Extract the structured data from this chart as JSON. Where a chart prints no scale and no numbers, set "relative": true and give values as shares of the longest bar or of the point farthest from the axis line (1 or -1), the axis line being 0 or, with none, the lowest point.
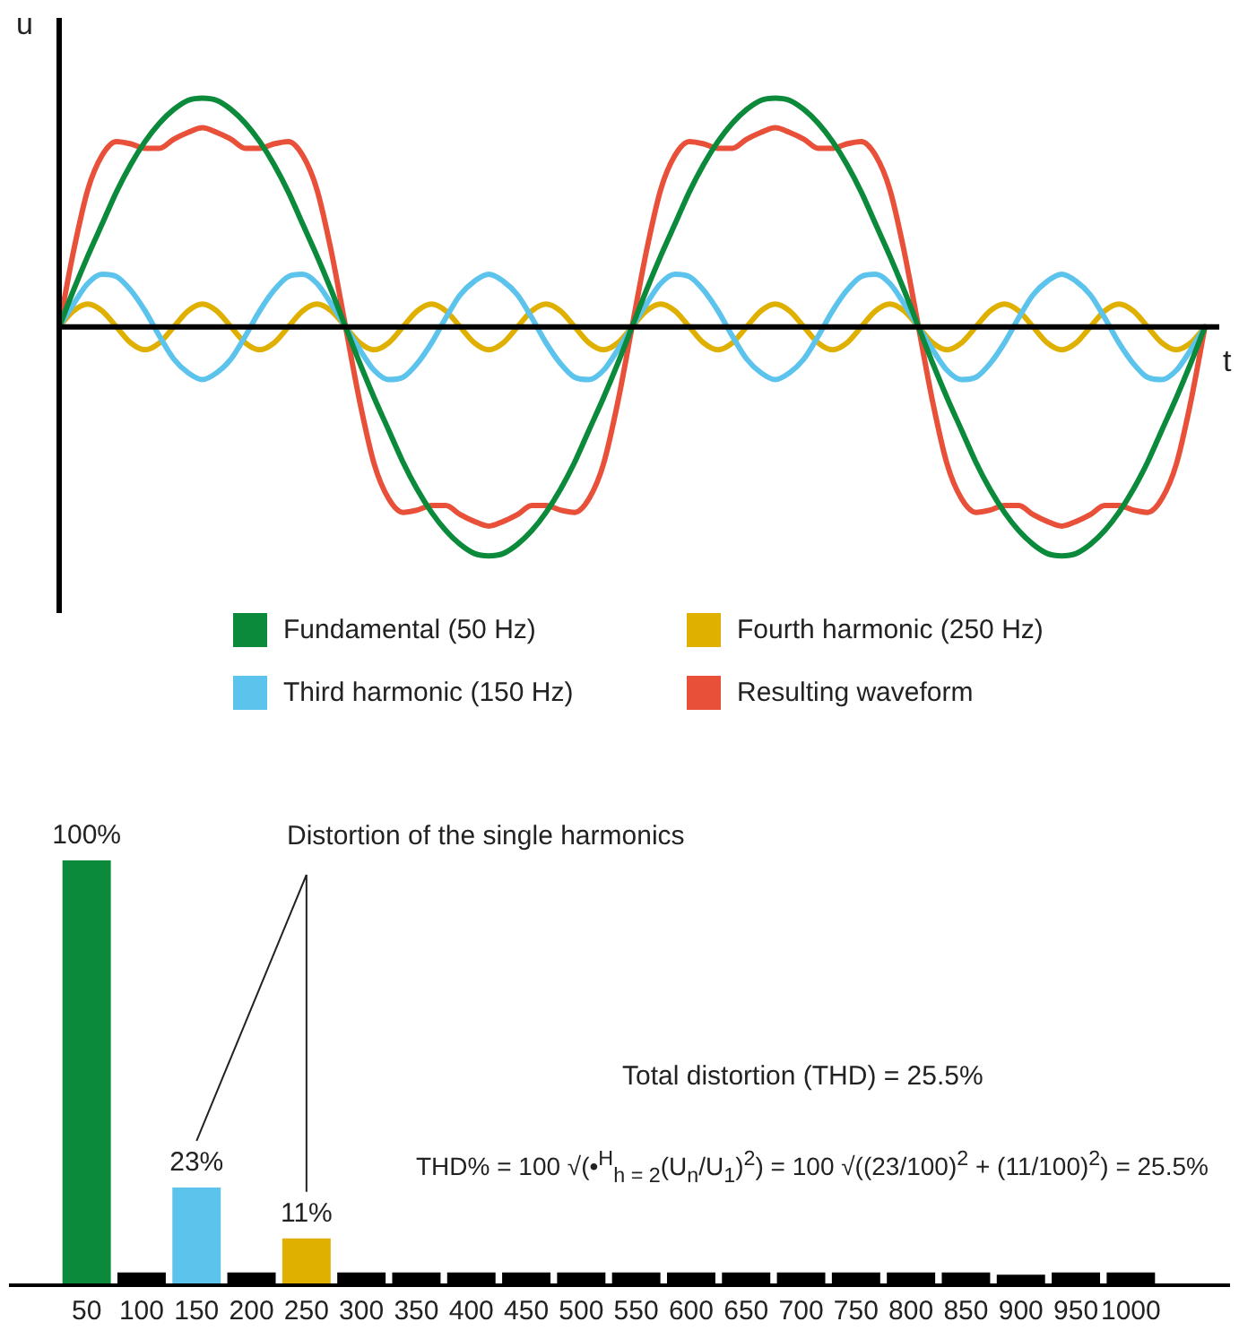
{
  "chart_data": [
    {
      "type": "line",
      "relative": true,
      "xlabel": "t",
      "ylabel": "u",
      "legend": "bottom",
      "categories": [
        null,
        null,
        null,
        null,
        null,
        null,
        null,
        null,
        null,
        null,
        null,
        null,
        null,
        null,
        null,
        null,
        null,
        null,
        null,
        null,
        null,
        null,
        null,
        null,
        null,
        null,
        null,
        null,
        null,
        null,
        null,
        null,
        null,
        null,
        null,
        null,
        null,
        null,
        null,
        null,
        null,
        null,
        null,
        null,
        null,
        null,
        null,
        null,
        null,
        null,
        null,
        null,
        null,
        null,
        null,
        null,
        null,
        null,
        null,
        null,
        null,
        null,
        null,
        null,
        null,
        null,
        null,
        null,
        null,
        null,
        null,
        null,
        null,
        null,
        null,
        null,
        null,
        null,
        null,
        null,
        null
      ],
      "series": [
        {
          "name": "Fundamental (50 Hz)",
          "color": "#0a8a3a",
          "values": [
            0,
            0.16,
            0.31,
            0.45,
            0.59,
            0.71,
            0.81,
            0.89,
            0.95,
            0.99,
            1,
            0.99,
            0.95,
            0.89,
            0.81,
            0.71,
            0.59,
            0.45,
            0.31,
            0.16,
            0,
            -0.16,
            -0.31,
            -0.45,
            -0.59,
            -0.71,
            -0.81,
            -0.89,
            -0.95,
            -0.99,
            -1,
            -0.99,
            -0.95,
            -0.89,
            -0.81,
            -0.71,
            -0.59,
            -0.45,
            -0.31,
            -0.16,
            0,
            0.16,
            0.31,
            0.45,
            0.59,
            0.71,
            0.81,
            0.89,
            0.95,
            0.99,
            1,
            0.99,
            0.95,
            0.89,
            0.81,
            0.71,
            0.59,
            0.45,
            0.31,
            0.16,
            0,
            -0.16,
            -0.31,
            -0.45,
            -0.59,
            -0.71,
            -0.81,
            -0.89,
            -0.95,
            -0.99,
            -1,
            -0.99,
            -0.95,
            -0.89,
            -0.81,
            -0.71,
            -0.59,
            -0.45,
            -0.31,
            -0.16,
            0
          ]
        },
        {
          "name": "Third harmonic (150 Hz)",
          "color": "#5bc3ec",
          "values": [
            0,
            0.1,
            0.19,
            0.23,
            0.22,
            0.16,
            0.07,
            -0.04,
            -0.14,
            -0.2,
            -0.23,
            -0.2,
            -0.14,
            -0.04,
            0.07,
            0.16,
            0.22,
            0.23,
            0.19,
            0.1,
            0,
            -0.1,
            -0.19,
            -0.23,
            -0.22,
            -0.16,
            -0.07,
            0.04,
            0.14,
            0.2,
            0.23,
            0.2,
            0.14,
            0.04,
            -0.07,
            -0.16,
            -0.22,
            -0.23,
            -0.19,
            -0.1,
            0,
            0.1,
            0.19,
            0.23,
            0.22,
            0.16,
            0.07,
            -0.04,
            -0.14,
            -0.2,
            -0.23,
            -0.2,
            -0.14,
            -0.04,
            0.07,
            0.16,
            0.22,
            0.23,
            0.19,
            0.1,
            0,
            -0.1,
            -0.19,
            -0.23,
            -0.22,
            -0.16,
            -0.07,
            0.04,
            0.14,
            0.2,
            0.23,
            0.2,
            0.14,
            0.04,
            -0.07,
            -0.16,
            -0.22,
            -0.23,
            -0.19,
            -0.1,
            0
          ]
        },
        {
          "name": "Fourth harmonic (250 Hz)",
          "color": "#e0b000",
          "values": [
            0,
            0.07,
            0.1,
            0.07,
            0,
            -0.07,
            -0.1,
            -0.07,
            0,
            0.07,
            0.1,
            0.07,
            0,
            -0.07,
            -0.1,
            -0.07,
            0,
            0.07,
            0.1,
            0.07,
            0,
            -0.07,
            -0.1,
            -0.07,
            0,
            0.07,
            0.1,
            0.07,
            0,
            -0.07,
            -0.1,
            -0.07,
            0,
            0.07,
            0.1,
            0.07,
            0,
            -0.07,
            -0.1,
            -0.07,
            0,
            0.07,
            0.1,
            0.07,
            0,
            -0.07,
            -0.1,
            -0.07,
            0,
            0.07,
            0.1,
            0.07,
            0,
            -0.07,
            -0.1,
            -0.07,
            0,
            0.07,
            0.1,
            0.07,
            0,
            -0.07,
            -0.1,
            -0.07,
            0,
            0.07,
            0.1,
            0.07,
            0,
            -0.07,
            -0.1,
            -0.07,
            0,
            0.07,
            0.1,
            0.07,
            0,
            -0.07,
            -0.1,
            -0.07,
            0
          ]
        },
        {
          "name": "Resulting waveform",
          "color": "#e8503a",
          "values": [
            0,
            0.33,
            0.6,
            0.75,
            0.81,
            0.8,
            0.78,
            0.78,
            0.82,
            0.85,
            0.87,
            0.85,
            0.82,
            0.78,
            0.78,
            0.8,
            0.81,
            0.75,
            0.6,
            0.33,
            0,
            -0.33,
            -0.6,
            -0.75,
            -0.81,
            -0.8,
            -0.78,
            -0.78,
            -0.82,
            -0.85,
            -0.87,
            -0.85,
            -0.82,
            -0.78,
            -0.78,
            -0.8,
            -0.81,
            -0.75,
            -0.6,
            -0.33,
            0,
            0.33,
            0.6,
            0.75,
            0.81,
            0.8,
            0.78,
            0.78,
            0.82,
            0.85,
            0.87,
            0.85,
            0.82,
            0.78,
            0.78,
            0.8,
            0.81,
            0.75,
            0.6,
            0.33,
            0,
            -0.33,
            -0.6,
            -0.75,
            -0.81,
            -0.8,
            -0.78,
            -0.78,
            -0.82,
            -0.85,
            -0.87,
            -0.85,
            -0.82,
            -0.78,
            -0.78,
            -0.8,
            -0.81,
            -0.75,
            -0.6,
            -0.33,
            0
          ]
        }
      ]
    },
    {
      "type": "bar",
      "tick_labels": "x",
      "categories": [
        "50",
        "100",
        "150",
        "200",
        "250",
        "300",
        "350",
        "400",
        "450",
        "500",
        "550",
        "600",
        "650",
        "700",
        "750",
        "800",
        "850",
        "900",
        "950",
        "1000"
      ],
      "values": [
        100,
        3,
        23,
        3,
        11,
        3,
        3,
        3,
        3,
        3,
        3,
        3,
        3,
        3,
        3,
        3,
        3,
        2.5,
        3,
        3
      ],
      "colors": [
        "#0a8a3a",
        "#000000",
        "#5bc3ec",
        "#000000",
        "#e0b000",
        "#000000",
        "#000000",
        "#000000",
        "#000000",
        "#000000",
        "#000000",
        "#000000",
        "#000000",
        "#000000",
        "#000000",
        "#000000",
        "#000000",
        "#000000",
        "#000000",
        "#000000"
      ],
      "value_labels": [
        "100%",
        null,
        "23%",
        null,
        "11%",
        null,
        null,
        null,
        null,
        null,
        null,
        null,
        null,
        null,
        null,
        null,
        null,
        null,
        null,
        null
      ],
      "annotations": [
        "Distortion of the single harmonics",
        "Total distortion (THD) = 25.5%",
        "THD% = 100 √(•$^{H}$$_{h = 2}$(U$_{n}$/U$_{1}$)$^{2}$) = 100 √((23/100)$^{2}$ + (11/100)$^{2}$) = 25.5%"
      ]
    }
  ]
}
